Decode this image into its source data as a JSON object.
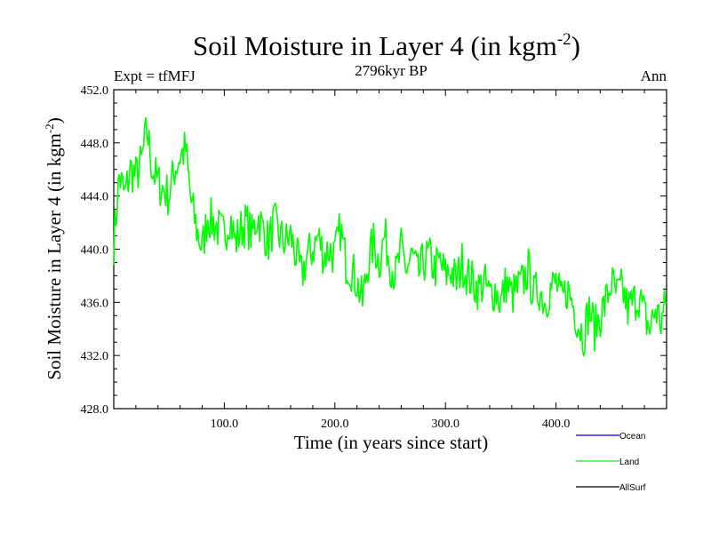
{
  "chart_data": {
    "type": "line",
    "title": "Soil Moisture in Layer 4 (in kgm",
    "title_sup": "-2",
    "title_close": ")",
    "left_label": "Expt = tfMFJ",
    "center_label": "2796kyr BP",
    "right_label": "Ann",
    "xlabel": "Time (in years since start)",
    "ylabel": "Soil Moisture in Layer 4 (in kgm",
    "ylabel_sup": "-2",
    "ylabel_close": ")",
    "xlim": [
      0,
      500
    ],
    "ylim": [
      428,
      452
    ],
    "x_ticks": [
      100,
      200,
      300,
      400
    ],
    "x_tick_labels": [
      "100.0",
      "200.0",
      "300.0",
      "400.0"
    ],
    "y_ticks": [
      428,
      432,
      436,
      440,
      444,
      448,
      452
    ],
    "y_tick_labels": [
      "428.0",
      "432.0",
      "436.0",
      "440.0",
      "444.0",
      "448.0",
      "452.0"
    ],
    "series": [
      {
        "name": "Land",
        "color": "#00ff00",
        "x": [
          0,
          5,
          10,
          15,
          20,
          25,
          30,
          35,
          40,
          45,
          50,
          55,
          60,
          65,
          70,
          75,
          80,
          85,
          90,
          95,
          100,
          105,
          110,
          115,
          120,
          125,
          130,
          135,
          140,
          145,
          150,
          155,
          160,
          165,
          170,
          175,
          180,
          185,
          190,
          195,
          200,
          205,
          210,
          215,
          220,
          225,
          230,
          235,
          240,
          245,
          250,
          255,
          260,
          265,
          270,
          275,
          280,
          285,
          290,
          295,
          300,
          305,
          310,
          315,
          320,
          325,
          330,
          335,
          340,
          345,
          350,
          355,
          360,
          365,
          370,
          375,
          380,
          385,
          390,
          395,
          400,
          405,
          410,
          415,
          420,
          425,
          430,
          435,
          440,
          445,
          450,
          455,
          460,
          465,
          470,
          475,
          480,
          485,
          490,
          495,
          500
        ],
        "values": [
          440.5,
          445.5,
          444.0,
          446.0,
          445.5,
          446.5,
          449.0,
          446.0,
          445.0,
          444.5,
          444.0,
          446.0,
          447.0,
          447.5,
          443.5,
          441.5,
          440.0,
          442.5,
          442.0,
          441.5,
          441.0,
          442.5,
          440.5,
          441.5,
          442.0,
          441.0,
          442.5,
          441.5,
          440.5,
          442.0,
          441.0,
          440.5,
          441.0,
          439.5,
          438.0,
          439.5,
          440.0,
          441.0,
          439.5,
          440.0,
          439.5,
          441.5,
          439.0,
          438.5,
          437.5,
          436.0,
          439.0,
          440.5,
          439.0,
          441.0,
          439.0,
          438.0,
          440.0,
          438.5,
          439.5,
          438.0,
          439.0,
          439.5,
          438.5,
          439.0,
          438.0,
          438.5,
          437.5,
          439.0,
          438.0,
          437.5,
          437.0,
          437.5,
          436.5,
          437.0,
          436.0,
          437.5,
          436.5,
          437.0,
          437.5,
          438.5,
          436.5,
          437.0,
          436.0,
          437.0,
          437.5,
          436.0,
          437.0,
          436.0,
          434.5,
          433.5,
          435.5,
          434.0,
          435.0,
          436.0,
          437.5,
          436.5,
          437.0,
          435.5,
          436.0,
          436.5,
          435.0,
          434.0,
          435.5,
          434.5,
          436.0
        ]
      },
      {
        "name": "Ocean",
        "color": "#0000ff",
        "values": []
      },
      {
        "name": "AllSurf",
        "color": "#000000",
        "values": []
      }
    ],
    "legend": [
      "Ocean",
      "Land",
      "AllSurf"
    ]
  }
}
